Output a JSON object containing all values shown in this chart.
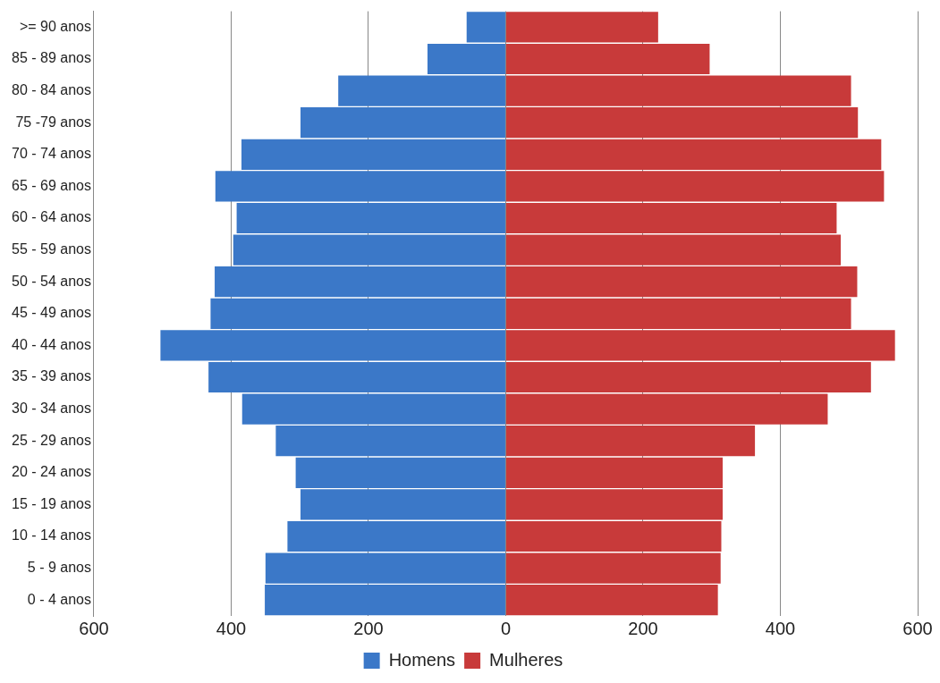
{
  "chart_data": {
    "type": "bar",
    "orientation": "horizontal",
    "stacked": true,
    "categories": [
      ">= 90 anos",
      "85 - 89 anos",
      "80 - 84 anos",
      "75 -79 anos",
      "70 - 74 anos",
      "65 - 69 anos",
      "60 - 64 anos",
      "55 - 59 anos",
      "50 - 54 anos",
      "45 - 49 anos",
      "40 - 44 anos",
      "35 - 39 anos",
      "30 - 34 anos",
      "25 - 29 anos",
      "20 - 24 anos",
      "15 - 19 anos",
      "10 - 14 anos",
      "5 - 9 anos",
      "0 - 4 anos"
    ],
    "series": [
      {
        "name": "Homens",
        "color": "#3b78c8",
        "values": [
          -57,
          -114,
          -244,
          -299,
          -385,
          -423,
          -392,
          -397,
          -424,
          -430,
          -503,
          -433,
          -384,
          -335,
          -306,
          -299,
          -318,
          -350,
          -351
        ]
      },
      {
        "name": "Mulheres",
        "color": "#c83a3a",
        "values": [
          222,
          297,
          503,
          513,
          547,
          551,
          482,
          488,
          512,
          503,
          567,
          532,
          469,
          363,
          316,
          316,
          314,
          313,
          309
        ]
      }
    ],
    "xlim": [
      -600,
      600
    ],
    "xticks": [
      {
        "value": -600,
        "label": "600"
      },
      {
        "value": -400,
        "label": "400"
      },
      {
        "value": -200,
        "label": "200"
      },
      0,
      200,
      400,
      600
    ],
    "grid": "x",
    "legend": "bottom"
  }
}
